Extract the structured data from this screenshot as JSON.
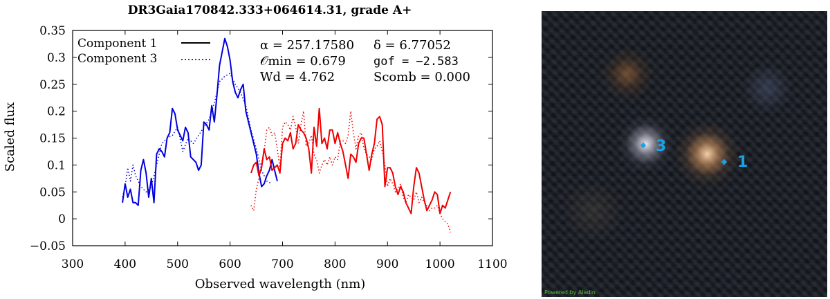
{
  "chart_data": {
    "type": "line",
    "title": "DR3Gaia170842.333+064614.31, grade A+",
    "xlabel": "Observed wavelength (nm)",
    "ylabel": "Scaled flux",
    "xlim": [
      300,
      1100
    ],
    "ylim": [
      -0.05,
      0.35
    ],
    "xticks": [
      300,
      400,
      500,
      600,
      700,
      800,
      900,
      1000,
      1100
    ],
    "xtick_labels": [
      "300",
      "400",
      "500",
      "600",
      "700",
      "800",
      "900",
      "1000",
      "1100"
    ],
    "yticks": [
      -0.05,
      0,
      0.05,
      0.1,
      0.15,
      0.2,
      0.25,
      0.3,
      0.35
    ],
    "ytick_labels": [
      "−0.05",
      "0",
      "0.05",
      "0.1",
      "0.15",
      "0.2",
      "0.25",
      "0.3",
      "0.35"
    ],
    "grid": false,
    "legend_position": "top-left",
    "legend": [
      {
        "label": "Component 1",
        "style": "solid"
      },
      {
        "label": "Component 3",
        "style": "dotted"
      }
    ],
    "annotations": {
      "alpha": "α = 257.17580",
      "delta": "δ = 6.77052",
      "o_min": "𝒪min = 0.679",
      "gof": "gof = −2.583",
      "w_d": "Wd = 4.762",
      "s_comb": "Scomb = 0.000"
    },
    "series": [
      {
        "name": "Component 1",
        "style": "solid",
        "color": "#0000dd",
        "x": [
          395,
          400,
          405,
          410,
          415,
          420,
          425,
          430,
          435,
          440,
          445,
          450,
          455,
          460,
          465,
          470,
          475,
          480,
          485,
          490,
          495,
          500,
          505,
          510,
          515,
          520,
          525,
          530,
          535,
          540,
          545,
          550,
          555,
          560,
          565,
          570,
          575,
          580,
          585,
          590,
          595,
          600,
          605,
          610,
          615,
          620,
          625,
          630,
          635,
          640,
          645,
          650,
          655,
          660,
          665,
          670,
          675,
          680,
          690
        ],
        "y": [
          0.03,
          0.065,
          0.04,
          0.055,
          0.03,
          0.03,
          0.025,
          0.09,
          0.11,
          0.085,
          0.04,
          0.075,
          0.03,
          0.12,
          0.13,
          0.125,
          0.115,
          0.15,
          0.16,
          0.205,
          0.195,
          0.165,
          0.155,
          0.145,
          0.17,
          0.16,
          0.115,
          0.11,
          0.105,
          0.09,
          0.1,
          0.18,
          0.175,
          0.165,
          0.21,
          0.18,
          0.23,
          0.285,
          0.31,
          0.335,
          0.32,
          0.295,
          0.255,
          0.235,
          0.225,
          0.24,
          0.25,
          0.2,
          0.18,
          0.16,
          0.14,
          0.12,
          0.085,
          0.06,
          0.065,
          0.08,
          0.09,
          0.11,
          0.07
        ]
      },
      {
        "name": "Component 3",
        "style": "dotted",
        "color": "#0000dd",
        "x": [
          395,
          400,
          405,
          410,
          415,
          420,
          430,
          440,
          450,
          460,
          470,
          480,
          490,
          500,
          510,
          520,
          530,
          540,
          550,
          560,
          570,
          580,
          590,
          600,
          610,
          620,
          630,
          640,
          650,
          660,
          670,
          680
        ],
        "y": [
          0.04,
          0.06,
          0.095,
          0.07,
          0.1,
          0.08,
          0.06,
          0.05,
          0.06,
          0.1,
          0.14,
          0.15,
          0.155,
          0.17,
          0.125,
          0.15,
          0.14,
          0.155,
          0.17,
          0.185,
          0.215,
          0.255,
          0.265,
          0.27,
          0.25,
          0.235,
          0.21,
          0.165,
          0.13,
          0.09,
          0.07,
          0.065
        ]
      },
      {
        "name": "Component 1 (red arm)",
        "style": "solid",
        "color": "#ee0000",
        "x": [
          640,
          645,
          650,
          655,
          660,
          665,
          670,
          675,
          680,
          685,
          690,
          695,
          700,
          705,
          710,
          715,
          720,
          725,
          730,
          735,
          740,
          745,
          750,
          755,
          760,
          765,
          770,
          775,
          780,
          785,
          790,
          795,
          800,
          805,
          810,
          815,
          820,
          825,
          830,
          835,
          840,
          845,
          850,
          855,
          860,
          865,
          870,
          875,
          880,
          885,
          890,
          895,
          900,
          905,
          910,
          915,
          920,
          925,
          930,
          935,
          940,
          945,
          950,
          955,
          960,
          965,
          970,
          975,
          980,
          985,
          990,
          995,
          1000,
          1005,
          1010,
          1015,
          1020
        ],
        "y": [
          0.085,
          0.1,
          0.105,
          0.08,
          0.095,
          0.13,
          0.11,
          0.115,
          0.09,
          0.095,
          0.1,
          0.085,
          0.14,
          0.15,
          0.145,
          0.16,
          0.13,
          0.14,
          0.175,
          0.165,
          0.16,
          0.15,
          0.13,
          0.085,
          0.17,
          0.135,
          0.205,
          0.14,
          0.15,
          0.13,
          0.165,
          0.165,
          0.14,
          0.16,
          0.14,
          0.125,
          0.1,
          0.075,
          0.12,
          0.115,
          0.105,
          0.14,
          0.15,
          0.15,
          0.12,
          0.09,
          0.12,
          0.14,
          0.185,
          0.19,
          0.175,
          0.06,
          0.095,
          0.095,
          0.085,
          0.06,
          0.045,
          0.06,
          0.05,
          0.03,
          0.02,
          0.01,
          0.06,
          0.095,
          0.085,
          0.06,
          0.035,
          0.015,
          0.025,
          0.035,
          0.05,
          0.045,
          0.01,
          0.025,
          0.02,
          0.035,
          0.05
        ]
      },
      {
        "name": "Component 3 (red arm)",
        "style": "dotted",
        "color": "#ee0000",
        "x": [
          640,
          645,
          650,
          655,
          660,
          665,
          670,
          675,
          680,
          685,
          690,
          695,
          700,
          705,
          710,
          715,
          720,
          725,
          730,
          735,
          740,
          745,
          750,
          755,
          760,
          765,
          770,
          775,
          780,
          785,
          790,
          795,
          800,
          805,
          810,
          815,
          820,
          825,
          830,
          835,
          840,
          845,
          850,
          855,
          860,
          865,
          870,
          875,
          880,
          885,
          890,
          895,
          900,
          905,
          910,
          915,
          920,
          925,
          930,
          935,
          940,
          945,
          950,
          955,
          960,
          965,
          970,
          975,
          980,
          985,
          990,
          995,
          1000,
          1005,
          1010,
          1015,
          1020
        ],
        "y": [
          0.025,
          0.015,
          0.055,
          0.075,
          0.105,
          0.125,
          0.165,
          0.17,
          0.155,
          0.16,
          0.13,
          0.095,
          0.17,
          0.18,
          0.175,
          0.165,
          0.19,
          0.17,
          0.14,
          0.175,
          0.2,
          0.135,
          0.14,
          0.155,
          0.12,
          0.11,
          0.085,
          0.1,
          0.11,
          0.1,
          0.115,
          0.1,
          0.115,
          0.11,
          0.145,
          0.145,
          0.14,
          0.155,
          0.2,
          0.16,
          0.13,
          0.155,
          0.16,
          0.13,
          0.12,
          0.115,
          0.11,
          0.13,
          0.135,
          0.145,
          0.125,
          0.1,
          0.06,
          0.075,
          0.065,
          0.05,
          0.055,
          0.065,
          0.04,
          0.03,
          0.045,
          0.04,
          0.035,
          0.05,
          0.03,
          0.04,
          0.03,
          0.025,
          0.015,
          0.02,
          0.02,
          0.025,
          0.01,
          0.0,
          -0.005,
          -0.01,
          -0.025
        ]
      }
    ]
  },
  "cutout": {
    "background": "#161a22",
    "sources": [
      {
        "label": "1",
        "color": "#19a3e6"
      },
      {
        "label": "3",
        "color": "#19a3e6"
      }
    ],
    "credit": "Powered by Aladin"
  }
}
